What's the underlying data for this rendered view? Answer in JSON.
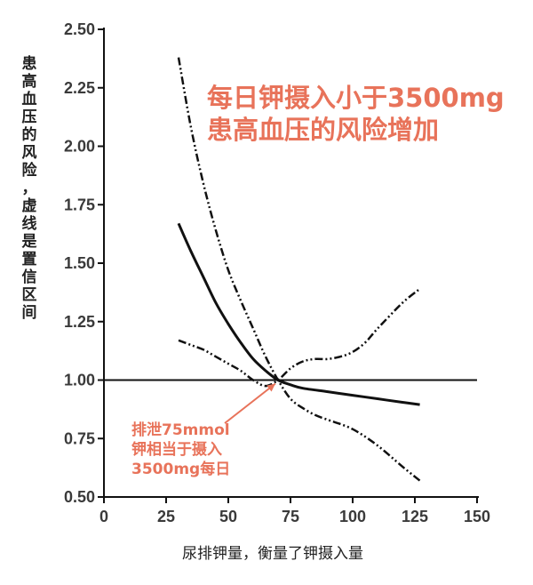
{
  "chart_data": {
    "type": "line",
    "ylabel": "患高血压的风险，虚线是置信区间",
    "xlabel": "尿排钾量，衡量了钾摄入量",
    "xlim": [
      0,
      150
    ],
    "ylim": [
      0.5,
      2.5
    ],
    "x_ticks": [
      "0",
      "25",
      "50",
      "75",
      "100",
      "125",
      "150"
    ],
    "y_ticks": [
      "0.50",
      "0.75",
      "1.00",
      "1.25",
      "1.50",
      "1.75",
      "2.00",
      "2.25",
      "2.50"
    ],
    "reference_line": 1.0,
    "series": [
      {
        "style": "solid",
        "x": [
          30,
          35,
          40,
          45,
          50,
          55,
          60,
          65,
          70,
          75,
          80,
          90,
          100,
          110,
          120,
          127
        ],
        "y": [
          1.67,
          1.55,
          1.44,
          1.33,
          1.24,
          1.16,
          1.09,
          1.04,
          1.0,
          0.98,
          0.965,
          0.95,
          0.935,
          0.92,
          0.905,
          0.895
        ]
      },
      {
        "style": "dash-dot",
        "x": [
          30,
          35,
          40,
          45,
          50,
          55,
          60,
          65,
          70,
          75,
          80,
          85,
          90,
          100,
          110,
          120,
          127
        ],
        "y": [
          2.38,
          2.08,
          1.84,
          1.64,
          1.47,
          1.34,
          1.22,
          1.1,
          1.0,
          0.92,
          0.88,
          0.85,
          0.83,
          0.79,
          0.72,
          0.63,
          0.57
        ]
      },
      {
        "style": "dash-dot",
        "x": [
          30,
          35,
          40,
          45,
          50,
          55,
          60,
          65,
          70,
          75,
          80,
          85,
          90,
          95,
          100,
          105,
          110,
          120,
          127
        ],
        "y": [
          1.17,
          1.15,
          1.13,
          1.1,
          1.07,
          1.04,
          1.0,
          0.975,
          1.0,
          1.05,
          1.08,
          1.09,
          1.09,
          1.1,
          1.12,
          1.16,
          1.22,
          1.33,
          1.39
        ]
      }
    ],
    "annotations": {
      "headline": [
        "每日钾摄入小于3500mg",
        "患高血压的风险增加"
      ],
      "note": [
        "排泄75mmol",
        "钾相当于摄入",
        "3500mg每日"
      ],
      "accent_color": "#e8735a"
    }
  }
}
